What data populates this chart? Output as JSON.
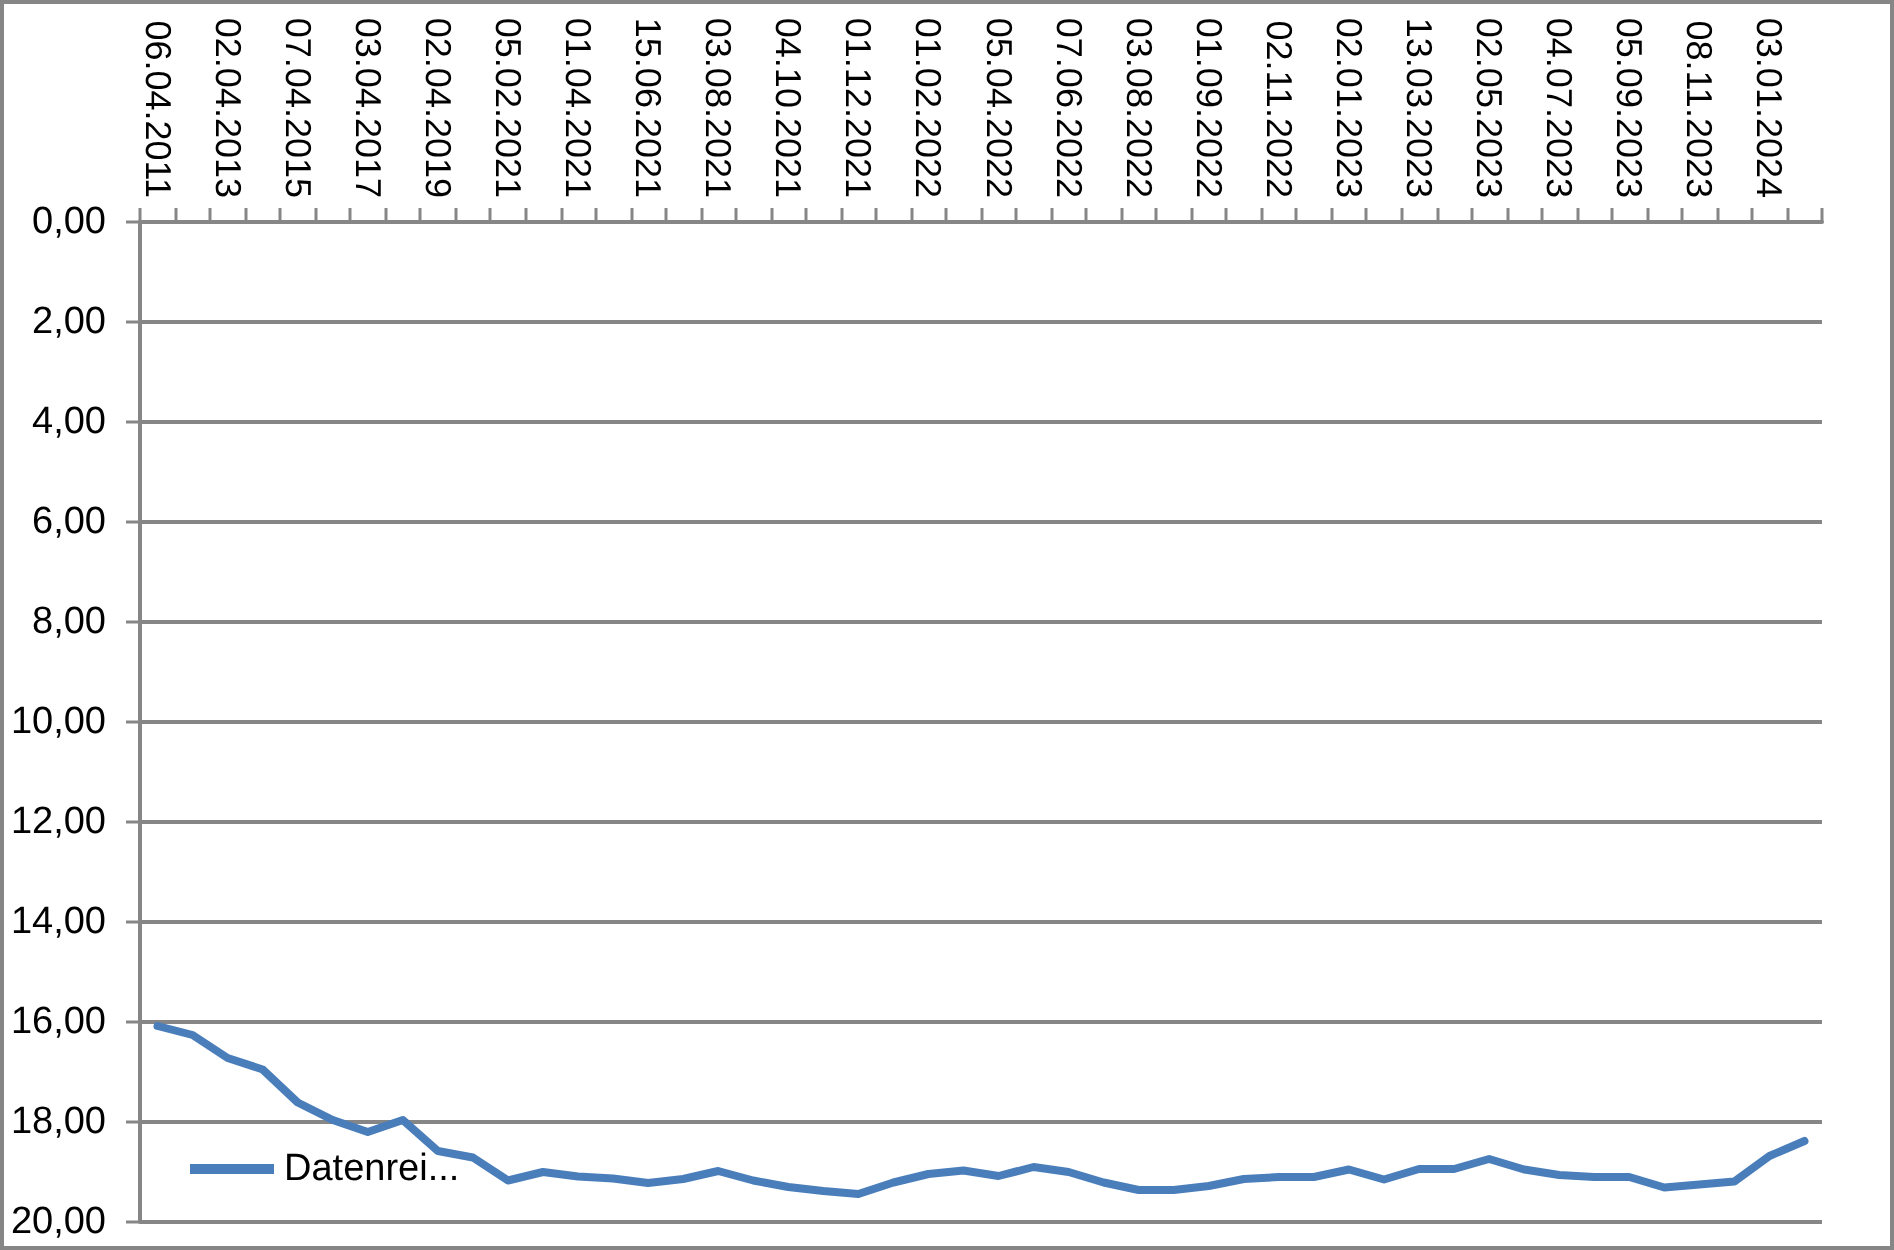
{
  "chart_data": {
    "type": "line",
    "categories": [
      "06.04.2011",
      null,
      "02.04.2013",
      null,
      "07.04.2015",
      null,
      "03.04.2017",
      null,
      "02.04.2019",
      null,
      "05.02.2021",
      null,
      "01.04.2021",
      null,
      "15.06.2021",
      null,
      "03.08.2021",
      null,
      "04.10.2021",
      null,
      "01.12.2021",
      null,
      "01.02.2022",
      null,
      "05.04.2022",
      null,
      "07.06.2022",
      null,
      "03.08.2022",
      null,
      "01.09.2022",
      null,
      "02.11.2022",
      null,
      "02.01.2023",
      null,
      "13.03.2023",
      null,
      "02.05.2023",
      null,
      "04.07.2023",
      null,
      "05.09.2023",
      null,
      "08.11.2023",
      null,
      "03.01.2024",
      null
    ],
    "series": [
      {
        "name": "Datenrei...",
        "color": "#4a7ebb",
        "values": [
          16.08,
          16.26,
          16.72,
          16.95,
          17.61,
          17.96,
          18.2,
          17.96,
          18.58,
          18.71,
          19.17,
          19.0,
          19.09,
          19.13,
          19.22,
          19.14,
          18.98,
          19.17,
          19.3,
          19.38,
          19.44,
          19.21,
          19.04,
          18.97,
          19.08,
          18.9,
          19.0,
          19.21,
          19.36,
          19.36,
          19.28,
          19.14,
          19.1,
          19.1,
          18.95,
          19.15,
          18.94,
          18.94,
          18.74,
          18.95,
          19.06,
          19.1,
          19.1,
          19.31,
          19.25,
          19.19,
          18.68,
          18.38
        ]
      }
    ],
    "ylim": [
      20,
      0
    ],
    "yticks": [
      {
        "value": 0,
        "label": "0,00"
      },
      {
        "value": 2,
        "label": "2,00"
      },
      {
        "value": 4,
        "label": "4,00"
      },
      {
        "value": 6,
        "label": "6,00"
      },
      {
        "value": 8,
        "label": "8,00"
      },
      {
        "value": 10,
        "label": "10,00"
      },
      {
        "value": 12,
        "label": "12,00"
      },
      {
        "value": 14,
        "label": "14,00"
      },
      {
        "value": 16,
        "label": "16,00"
      },
      {
        "value": 18,
        "label": "18,00"
      },
      {
        "value": 20,
        "label": "20,00"
      }
    ],
    "grid": "y",
    "legend": "bottom left",
    "marker": "none",
    "line_style": "solid"
  }
}
